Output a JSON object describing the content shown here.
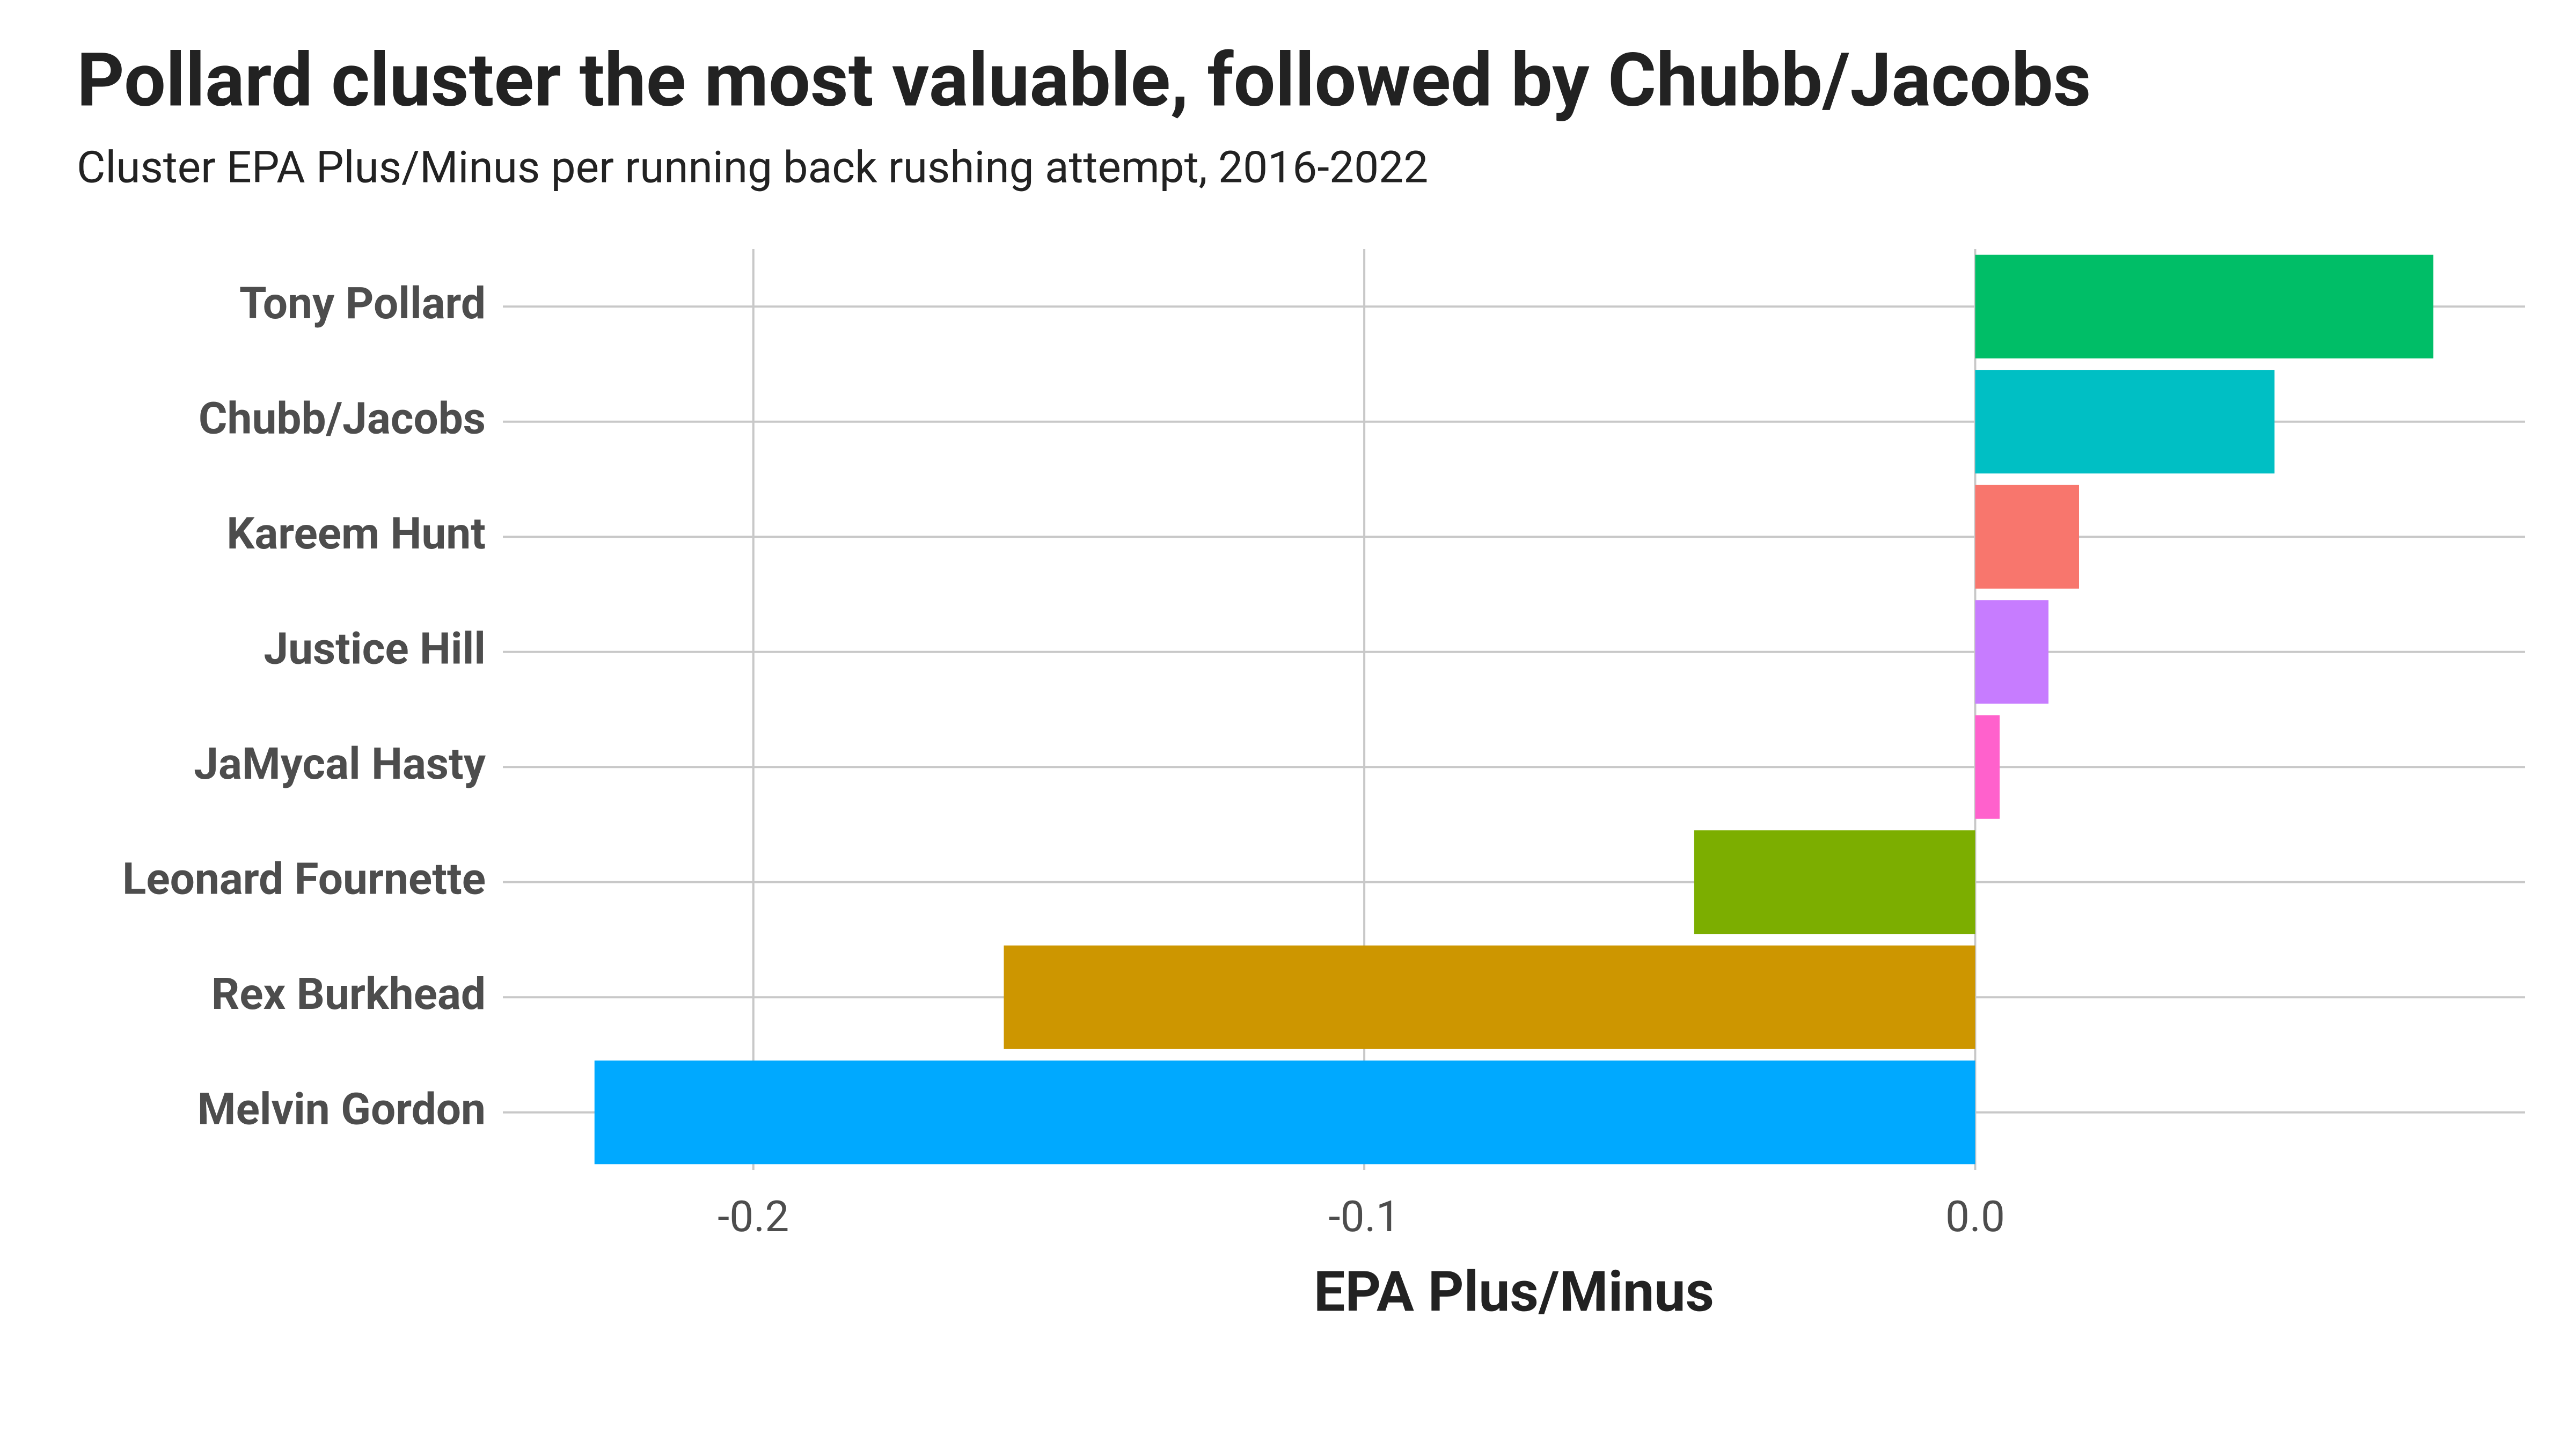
{
  "chart_data": {
    "type": "bar",
    "orientation": "horizontal",
    "title": "Pollard cluster the most valuable, followed by Chubb/Jacobs",
    "subtitle": "Cluster EPA Plus/Minus per running back rushing attempt, 2016-2022",
    "x_label": "EPA Plus/Minus",
    "categories": [
      "Tony Pollard",
      "Chubb/Jacobs",
      "Kareem Hunt",
      "Justice Hill",
      "JaMycal Hasty",
      "Leonard Fournette",
      "Rex Burkhead",
      "Melvin Gordon"
    ],
    "values": [
      0.075,
      0.049,
      0.017,
      0.012,
      0.004,
      -0.046,
      -0.159,
      -0.226
    ],
    "colors": [
      "#00be67",
      "#00bfc4",
      "#f8766d",
      "#c77cff",
      "#ff61cc",
      "#7cae00",
      "#cd9600",
      "#00a9ff"
    ],
    "xlim": [
      -0.241,
      0.09
    ],
    "xticks": [
      -0.2,
      -0.1,
      {
        "value": 0,
        "label": "0.0"
      }
    ],
    "grid": true
  }
}
